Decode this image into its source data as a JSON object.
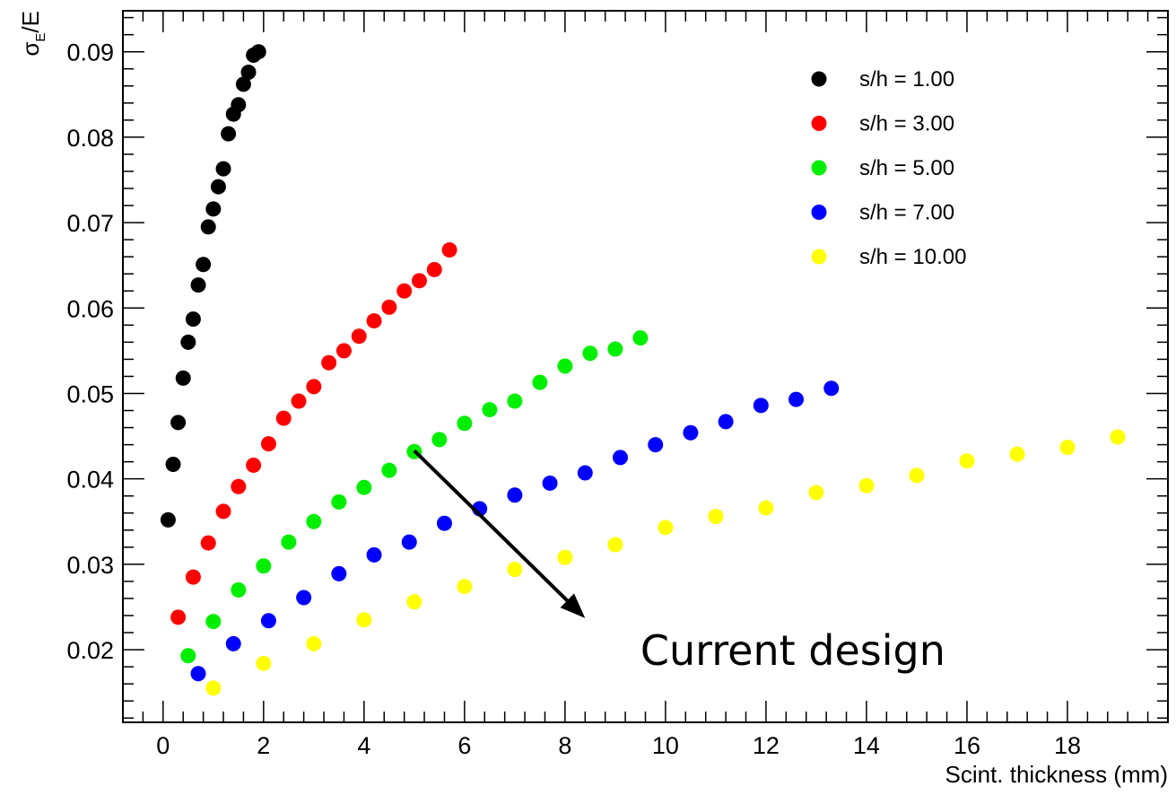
{
  "chart_data": {
    "type": "scatter",
    "title": "",
    "xlabel": "Scint. thickness (mm)",
    "ylabel_main": "σ",
    "ylabel_sub": "E",
    "ylabel_tail": "/E",
    "xlim": [
      -0.8,
      20.0
    ],
    "ylim": [
      0.0115,
      0.0948
    ],
    "x_ticks": [
      0,
      2,
      4,
      6,
      8,
      10,
      12,
      14,
      16,
      18
    ],
    "x_tick_labels": [
      "0",
      "2",
      "4",
      "6",
      "8",
      "10",
      "12",
      "14",
      "16",
      "18"
    ],
    "y_ticks": [
      0.02,
      0.03,
      0.04,
      0.05,
      0.06,
      0.07,
      0.08,
      0.09
    ],
    "y_tick_labels": [
      "0.02",
      "0.03",
      "0.04",
      "0.05",
      "0.06",
      "0.07",
      "0.08",
      "0.09"
    ],
    "grid": false,
    "legend_position": "top-right",
    "series": [
      {
        "name": "s/h = 1.00",
        "color": "#000000",
        "x": [
          0.1,
          0.2,
          0.3,
          0.4,
          0.5,
          0.6,
          0.7,
          0.8,
          0.9,
          1.0,
          1.1,
          1.2,
          1.3,
          1.4,
          1.5,
          1.6,
          1.7,
          1.8,
          1.9
        ],
        "y": [
          0.0352,
          0.0417,
          0.0466,
          0.0518,
          0.056,
          0.0587,
          0.0627,
          0.0651,
          0.0695,
          0.0716,
          0.0742,
          0.0763,
          0.0804,
          0.0827,
          0.0838,
          0.0862,
          0.0876,
          0.0896,
          0.09
        ]
      },
      {
        "name": "s/h = 3.00",
        "color": "#ff0000",
        "x": [
          0.3,
          0.6,
          0.9,
          1.2,
          1.5,
          1.8,
          2.1,
          2.4,
          2.7,
          3.0,
          3.3,
          3.6,
          3.9,
          4.2,
          4.5,
          4.8,
          5.1,
          5.4,
          5.7
        ],
        "y": [
          0.0238,
          0.0285,
          0.0325,
          0.0362,
          0.0391,
          0.0416,
          0.0441,
          0.0471,
          0.0491,
          0.0508,
          0.0536,
          0.055,
          0.0567,
          0.0585,
          0.0601,
          0.062,
          0.0632,
          0.0645,
          0.0668
        ]
      },
      {
        "name": "s/h = 5.00",
        "color": "#00ee00",
        "x": [
          0.5,
          1.0,
          1.5,
          2.0,
          2.5,
          3.0,
          3.5,
          4.0,
          4.5,
          5.0,
          5.5,
          6.0,
          6.5,
          7.0,
          7.5,
          8.0,
          8.5,
          9.0,
          9.5
        ],
        "y": [
          0.0193,
          0.0233,
          0.027,
          0.0298,
          0.0326,
          0.035,
          0.0373,
          0.039,
          0.041,
          0.0432,
          0.0446,
          0.0465,
          0.0481,
          0.0491,
          0.0513,
          0.0532,
          0.0547,
          0.0552,
          0.0565
        ]
      },
      {
        "name": "s/h = 7.00",
        "color": "#0000ff",
        "x": [
          0.7,
          1.4,
          2.1,
          2.8,
          3.5,
          4.2,
          4.9,
          5.6,
          6.3,
          7.0,
          7.7,
          8.4,
          9.1,
          9.8,
          10.5,
          11.2,
          11.9,
          12.6,
          13.3
        ],
        "y": [
          0.0172,
          0.0207,
          0.0234,
          0.0261,
          0.0289,
          0.0311,
          0.0326,
          0.0348,
          0.0365,
          0.0381,
          0.0395,
          0.0407,
          0.0425,
          0.044,
          0.0454,
          0.0467,
          0.0486,
          0.0493,
          0.0506
        ]
      },
      {
        "name": "s/h = 10.00",
        "color": "#ffff00",
        "x": [
          1,
          2,
          3,
          4,
          5,
          6,
          7,
          8,
          9,
          10,
          11,
          12,
          13,
          14,
          15,
          16,
          17,
          18,
          19
        ],
        "y": [
          0.0155,
          0.0184,
          0.0207,
          0.0235,
          0.0256,
          0.0274,
          0.0294,
          0.0308,
          0.0323,
          0.0343,
          0.0356,
          0.0366,
          0.0384,
          0.0392,
          0.0404,
          0.0421,
          0.0429,
          0.0437,
          0.0449
        ]
      }
    ],
    "annotations": [
      {
        "text": "Current design",
        "arrow_from": [
          5.0,
          0.0433
        ],
        "arrow_to": [
          8.4,
          0.0237
        ],
        "text_anchor": [
          9.5,
          0.0199
        ]
      }
    ]
  }
}
